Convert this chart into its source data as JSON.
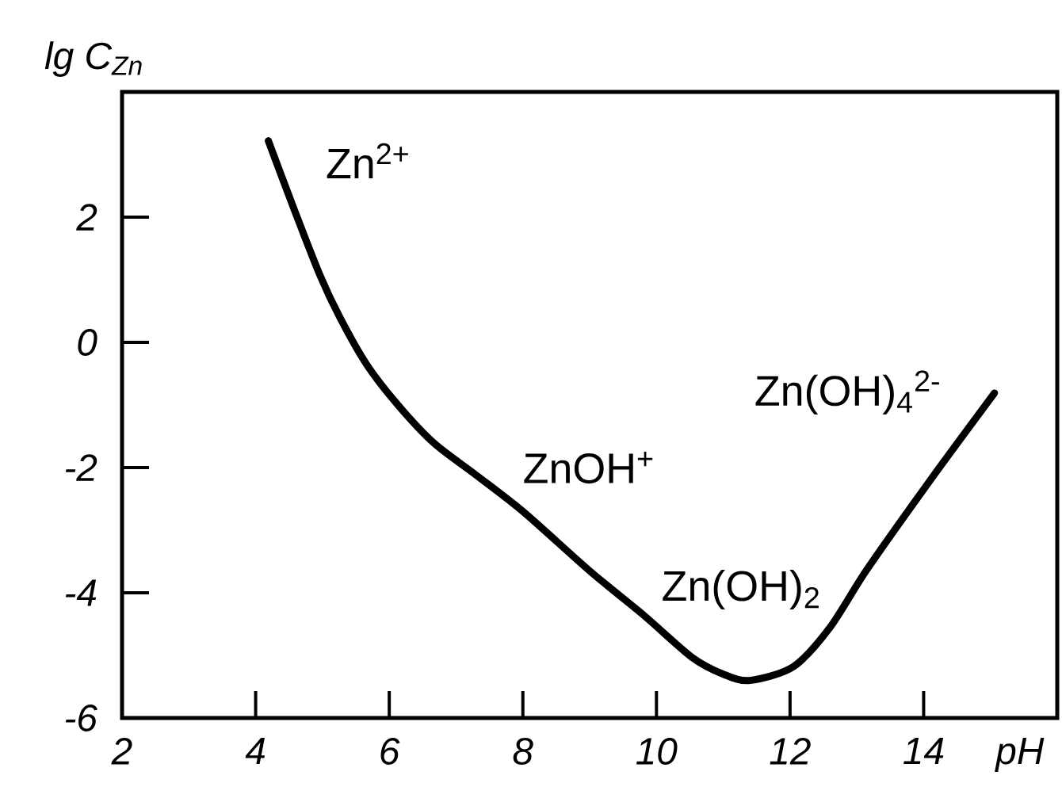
{
  "chart_data": {
    "type": "line",
    "xlabel": "pH",
    "ylabel": "lg C$_{Zn}$",
    "x": [
      4.19,
      4.56,
      4.96,
      5.26,
      5.66,
      6.13,
      6.67,
      7.3,
      8.0,
      9.0,
      9.8,
      10.53,
      11.0,
      11.4,
      12.05,
      12.6,
      13.15,
      14.1,
      15.06
    ],
    "values": [
      3.22,
      2.17,
      1.08,
      0.4,
      -0.35,
      -1.0,
      -1.61,
      -2.12,
      -2.7,
      -3.65,
      -4.35,
      -5.03,
      -5.3,
      -5.4,
      -5.18,
      -4.55,
      -3.63,
      -2.2,
      -0.81
    ],
    "color": "#000000",
    "xlim": [
      2,
      16
    ],
    "ylim": [
      -6,
      4
    ],
    "xticks": [
      2,
      4,
      6,
      8,
      10,
      12,
      14
    ],
    "yticks": [
      -6,
      -4,
      -2,
      0,
      2
    ],
    "annotations": [
      "Zn$^{2+}$",
      "ZnOH$^{+}$",
      "Zn(OH)$_{2}$",
      "Zn(OH)$_{4}$$^{2-}$"
    ]
  }
}
